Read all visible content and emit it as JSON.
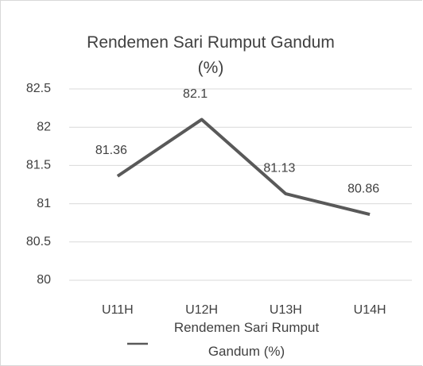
{
  "chart_data": {
    "type": "line",
    "title": "Rendemen Sari Rumput Gandum (%)",
    "categories": [
      "U11H",
      "U12H",
      "U13H",
      "U14H"
    ],
    "series": [
      {
        "name": "Rendemen Sari Rumput Gandum (%)",
        "color": "#595959",
        "values": [
          81.36,
          82.1,
          81.13,
          80.86
        ]
      }
    ],
    "ylim": [
      80,
      82.5
    ],
    "yticks": [
      80,
      80.5,
      81,
      81.5,
      82,
      82.5
    ],
    "grid": true,
    "legend": "bottom"
  }
}
